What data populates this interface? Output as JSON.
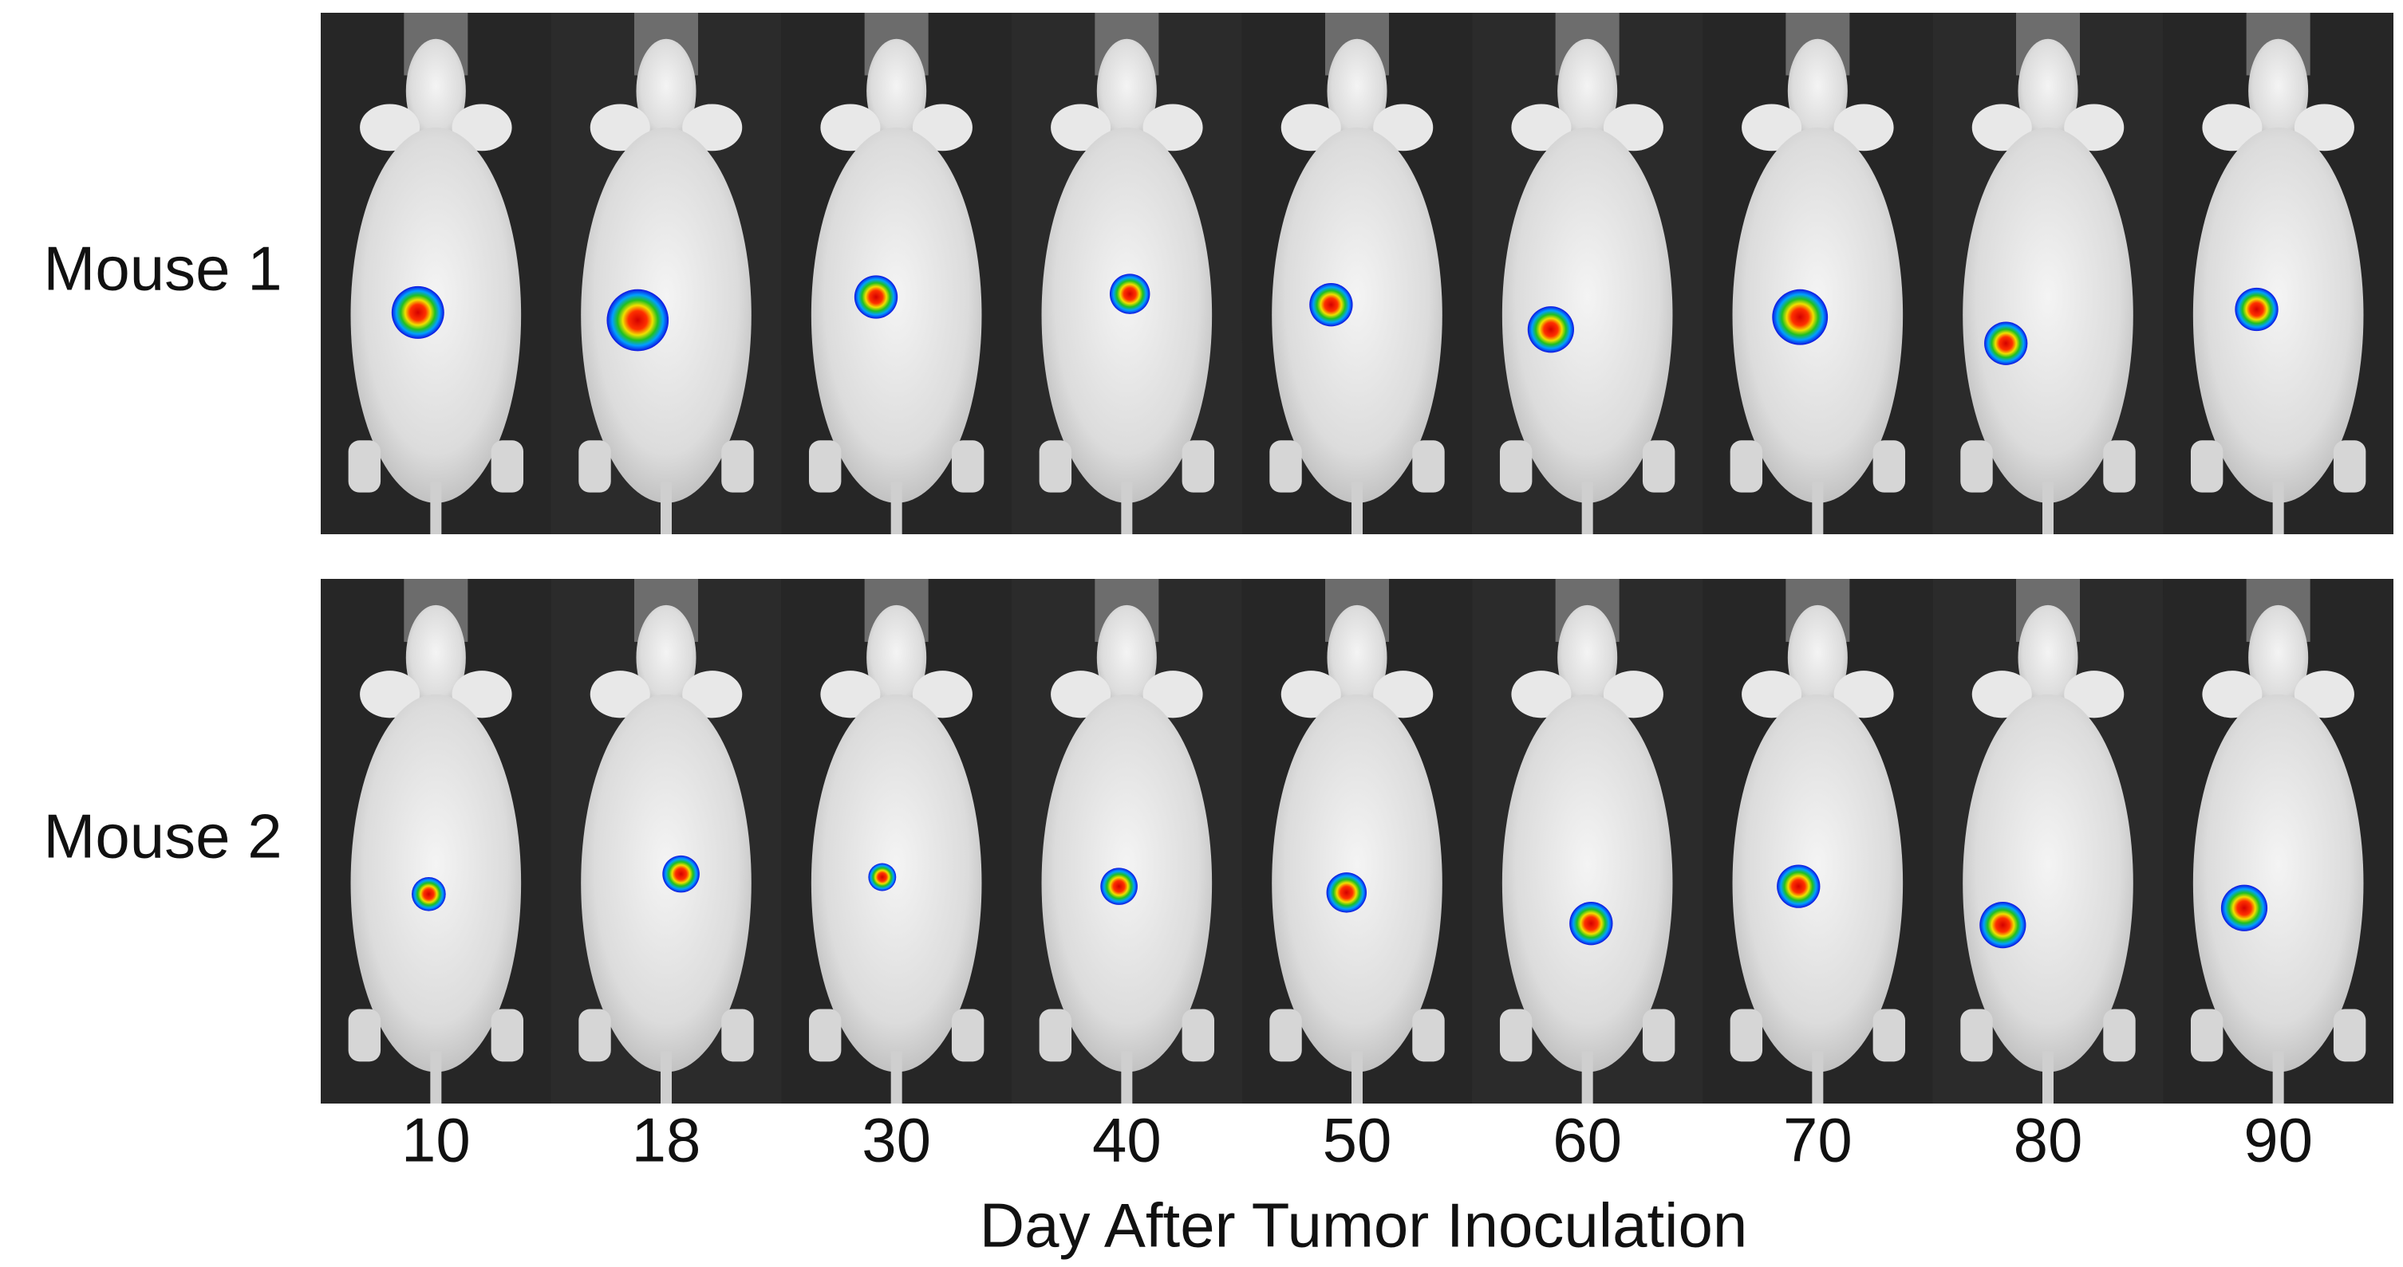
{
  "figure": {
    "rows": [
      "Mouse 1",
      "Mouse 2"
    ],
    "columns": [
      "10",
      "18",
      "30",
      "40",
      "50",
      "60",
      "70",
      "80",
      "90"
    ],
    "axis_title": "Day After Tumor Inoculation"
  }
}
